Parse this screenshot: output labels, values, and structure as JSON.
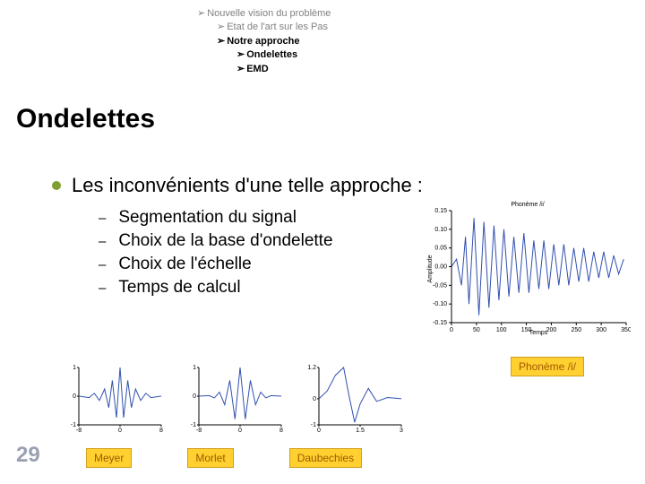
{
  "breadcrumb": {
    "items": [
      {
        "text": "Nouvelle vision du problème",
        "level": 0,
        "bold": false
      },
      {
        "text": "Etat de l'art sur les Pas",
        "level": 1,
        "bold": false
      },
      {
        "text": "Notre approche",
        "level": 2,
        "bold": true
      },
      {
        "text": "Ondelettes",
        "level": 3,
        "bold": true
      },
      {
        "text": "EMD",
        "level": 3,
        "bold": true
      }
    ]
  },
  "title": "Ondelettes",
  "main_bullet": "Les inconvénients d'une telle approche :",
  "sub_bullets": [
    "Segmentation du signal",
    "Choix de la base d'ondelette",
    "Choix de l'échelle",
    "Temps de calcul"
  ],
  "phoneme_label": "Phonème /i/",
  "wavelets": [
    {
      "label": "Meyer"
    },
    {
      "label": "Morlet"
    },
    {
      "label": "Daubechies"
    }
  ],
  "slide_number": "29",
  "colors": {
    "accent_green": "#7fa030",
    "badge_bg": "#ffd030",
    "badge_text": "#a05a00",
    "plot_line": "#3050b0",
    "slide_num": "#9aa0b0"
  },
  "phoneme_chart": {
    "type": "line",
    "title": "Phonème /i/",
    "xlabel": "Temps",
    "ylabel": "Amplitude",
    "xlim": [
      0,
      350
    ],
    "ylim": [
      -0.15,
      0.15
    ],
    "xtick_step": 50,
    "ytick_step": 0.05,
    "line_color": "#3050b0",
    "background_color": "#ffffff",
    "data_points": [
      [
        0,
        0.0
      ],
      [
        10,
        0.02
      ],
      [
        20,
        -0.05
      ],
      [
        28,
        0.08
      ],
      [
        35,
        -0.1
      ],
      [
        45,
        0.13
      ],
      [
        55,
        -0.13
      ],
      [
        65,
        0.12
      ],
      [
        75,
        -0.11
      ],
      [
        85,
        0.11
      ],
      [
        95,
        -0.09
      ],
      [
        105,
        0.1
      ],
      [
        115,
        -0.08
      ],
      [
        125,
        0.08
      ],
      [
        135,
        -0.07
      ],
      [
        145,
        0.09
      ],
      [
        155,
        -0.07
      ],
      [
        165,
        0.07
      ],
      [
        175,
        -0.06
      ],
      [
        185,
        0.07
      ],
      [
        195,
        -0.06
      ],
      [
        205,
        0.06
      ],
      [
        215,
        -0.05
      ],
      [
        225,
        0.06
      ],
      [
        235,
        -0.05
      ],
      [
        245,
        0.05
      ],
      [
        255,
        -0.04
      ],
      [
        265,
        0.05
      ],
      [
        275,
        -0.04
      ],
      [
        285,
        0.04
      ],
      [
        295,
        -0.03
      ],
      [
        305,
        0.04
      ],
      [
        315,
        -0.03
      ],
      [
        325,
        0.03
      ],
      [
        335,
        -0.02
      ],
      [
        345,
        0.02
      ]
    ]
  },
  "wavelet_charts": [
    {
      "name": "Meyer",
      "type": "line",
      "xlim": [
        -8,
        8
      ],
      "ylim": [
        -1,
        1
      ],
      "line_color": "#3050b0",
      "data_points": [
        [
          -8,
          0.0
        ],
        [
          -6,
          -0.05
        ],
        [
          -5,
          0.1
        ],
        [
          -4,
          -0.15
        ],
        [
          -3,
          0.25
        ],
        [
          -2.2,
          -0.4
        ],
        [
          -1.5,
          0.55
        ],
        [
          -0.7,
          -0.75
        ],
        [
          0,
          1.0
        ],
        [
          0.7,
          -0.75
        ],
        [
          1.5,
          0.55
        ],
        [
          2.2,
          -0.4
        ],
        [
          3,
          0.25
        ],
        [
          4,
          -0.15
        ],
        [
          5,
          0.1
        ],
        [
          6,
          -0.05
        ],
        [
          8,
          0.0
        ]
      ]
    },
    {
      "name": "Morlet",
      "type": "line",
      "xlim": [
        -8,
        8
      ],
      "ylim": [
        -1,
        1
      ],
      "line_color": "#3050b0",
      "data_points": [
        [
          -8,
          0.0
        ],
        [
          -6,
          0.02
        ],
        [
          -5,
          -0.06
        ],
        [
          -4,
          0.14
        ],
        [
          -3,
          -0.3
        ],
        [
          -2,
          0.55
        ],
        [
          -1,
          -0.8
        ],
        [
          0,
          1.0
        ],
        [
          1,
          -0.8
        ],
        [
          2,
          0.55
        ],
        [
          3,
          -0.3
        ],
        [
          4,
          0.14
        ],
        [
          5,
          -0.06
        ],
        [
          6,
          0.02
        ],
        [
          8,
          0.0
        ]
      ]
    },
    {
      "name": "Daubechies",
      "type": "line",
      "xlim": [
        0,
        3
      ],
      "ylim": [
        -1,
        1.2
      ],
      "line_color": "#3050b0",
      "data_points": [
        [
          0,
          0.0
        ],
        [
          0.3,
          0.3
        ],
        [
          0.6,
          0.9
        ],
        [
          0.9,
          1.2
        ],
        [
          1.1,
          0.1
        ],
        [
          1.3,
          -0.9
        ],
        [
          1.5,
          -0.2
        ],
        [
          1.8,
          0.4
        ],
        [
          2.1,
          -0.1
        ],
        [
          2.5,
          0.05
        ],
        [
          3.0,
          0.0
        ]
      ]
    }
  ]
}
